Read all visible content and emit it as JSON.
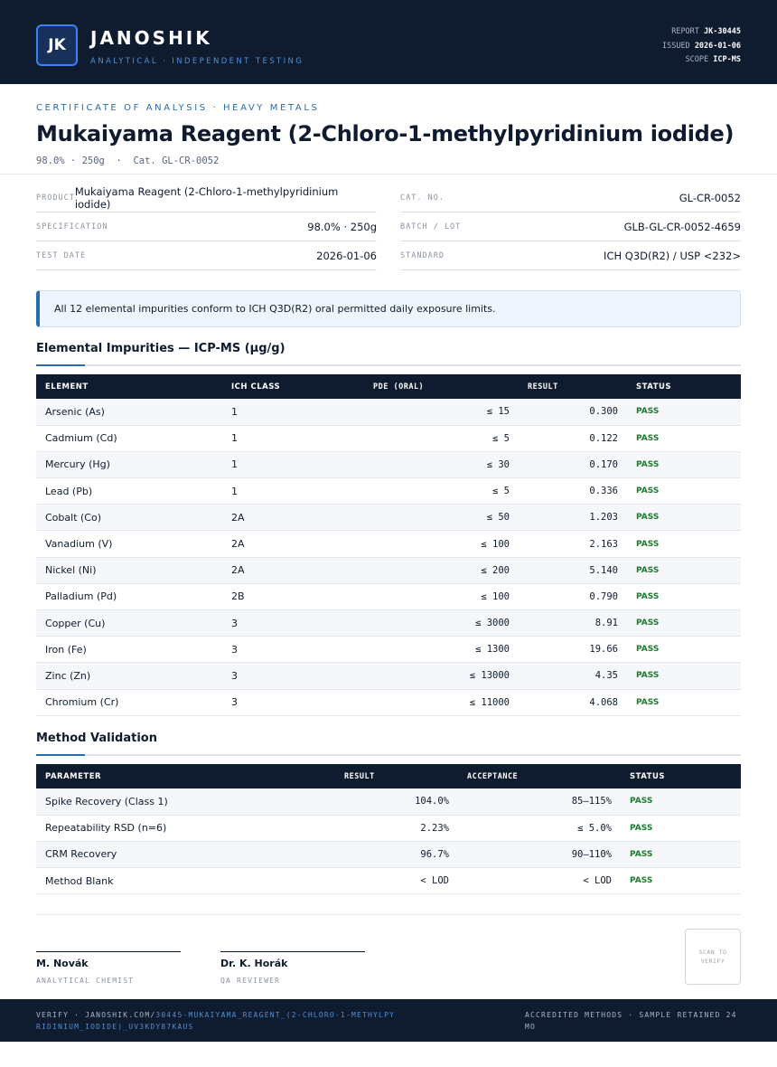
{
  "header": {
    "logo": "JK",
    "brand": "JANOSHIK",
    "tagline": "ANALYTICAL · INDEPENDENT TESTING",
    "meta": [
      {
        "label": "REPORT",
        "value": "JK-30445"
      },
      {
        "label": "ISSUED",
        "value": "2026-01-06"
      },
      {
        "label": "SCOPE",
        "value": "ICP-MS"
      }
    ]
  },
  "doc": {
    "kicker": "CERTIFICATE OF ANALYSIS · HEAVY METALS",
    "title": "Mukaiyama Reagent (2-Chloro-1-methylpyridinium iodide)",
    "subtitle": "98.0% · 250g  ·  Cat. GL-CR-0052"
  },
  "info": {
    "left": [
      {
        "label": "PRODUCT",
        "value": "Mukaiyama Reagent (2-Chloro-1-methylpyridinium iodide)"
      },
      {
        "label": "SPECIFICATION",
        "value": "98.0% · 250g"
      },
      {
        "label": "TEST DATE",
        "value": "2026-01-06"
      }
    ],
    "right": [
      {
        "label": "CAT. NO.",
        "value": "GL-CR-0052"
      },
      {
        "label": "BATCH / LOT",
        "value": "GLB-GL-CR-0052-4659"
      },
      {
        "label": "STANDARD",
        "value": "ICH Q3D(R2) / USP <232>"
      }
    ]
  },
  "notice": "All 12 elemental impurities conform to ICH Q3D(R2) oral permitted daily exposure limits.",
  "impurities": {
    "title": "Elemental Impurities — ICP-MS (µg/g)",
    "columns": [
      "ELEMENT",
      "ICH CLASS",
      "PDE (ORAL)",
      "RESULT",
      "STATUS"
    ],
    "rows": [
      [
        "Arsenic (As)",
        "1",
        "≤ 15",
        "0.300",
        "PASS"
      ],
      [
        "Cadmium (Cd)",
        "1",
        "≤ 5",
        "0.122",
        "PASS"
      ],
      [
        "Mercury (Hg)",
        "1",
        "≤ 30",
        "0.170",
        "PASS"
      ],
      [
        "Lead (Pb)",
        "1",
        "≤ 5",
        "0.336",
        "PASS"
      ],
      [
        "Cobalt (Co)",
        "2A",
        "≤ 50",
        "1.203",
        "PASS"
      ],
      [
        "Vanadium (V)",
        "2A",
        "≤ 100",
        "2.163",
        "PASS"
      ],
      [
        "Nickel (Ni)",
        "2A",
        "≤ 200",
        "5.140",
        "PASS"
      ],
      [
        "Palladium (Pd)",
        "2B",
        "≤ 100",
        "0.790",
        "PASS"
      ],
      [
        "Copper (Cu)",
        "3",
        "≤ 3000",
        "8.91",
        "PASS"
      ],
      [
        "Iron (Fe)",
        "3",
        "≤ 1300",
        "19.66",
        "PASS"
      ],
      [
        "Zinc (Zn)",
        "3",
        "≤ 13000",
        "4.35",
        "PASS"
      ],
      [
        "Chromium (Cr)",
        "3",
        "≤ 11000",
        "4.068",
        "PASS"
      ]
    ]
  },
  "validation": {
    "title": "Method Validation",
    "columns": [
      "PARAMETER",
      "RESULT",
      "ACCEPTANCE",
      "STATUS"
    ],
    "rows": [
      [
        "Spike Recovery (Class 1)",
        "104.0%",
        "85–115%",
        "PASS"
      ],
      [
        "Repeatability RSD (n=6)",
        "2.23%",
        "≤ 5.0%",
        "PASS"
      ],
      [
        "CRM Recovery",
        "96.7%",
        "90–110%",
        "PASS"
      ],
      [
        "Method Blank",
        "< LOD",
        "< LOD",
        "PASS"
      ]
    ]
  },
  "signatures": [
    {
      "name": "M. Novák",
      "role": "ANALYTICAL CHEMIST"
    },
    {
      "name": "Dr. K. Horák",
      "role": "QA REVIEWER"
    }
  ],
  "scan": "SCAN TO VERIFY",
  "footer": {
    "verify": "VERIFY · JANOSHIK.COM/",
    "link": "30445-MUKAIYAMA_REAGENT_(2-CHLORO-1-METHYLPYRIDINIUM_IODIDE)_UV3KDY87KAUS",
    "note": "ACCREDITED METHODS · SAMPLE RETAINED 24 MO"
  }
}
